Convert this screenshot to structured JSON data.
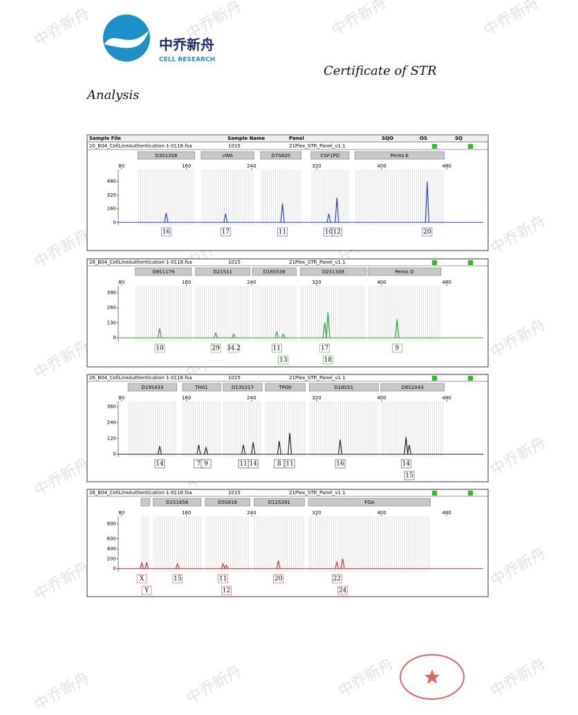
{
  "header": {
    "logo_name": "中乔新舟",
    "logo_subtitle": "CELL RESEARCH",
    "title": "Certificate of STR",
    "subtitle": "Analysis"
  },
  "watermark": "中乔新舟",
  "columns": [
    "Sample File",
    "Sample Name",
    "Panel",
    "SQO",
    "OS",
    "SQ"
  ],
  "panels": [
    {
      "sample_file": "20_B04_CellLineAuthentication-1-0118.fsa",
      "sample_name": "1015",
      "panel": "21Plex_STR_Panel_v1.1",
      "color": "#2b3fc0",
      "xlim": [
        76,
        525
      ],
      "xticks": [
        80,
        160,
        240,
        320,
        400,
        480
      ],
      "ylim": [
        -30,
        620
      ],
      "yticks": [
        0,
        160,
        320,
        480
      ],
      "loci": [
        {
          "name": "D3S1358",
          "range": [
            100,
            170
          ]
        },
        {
          "name": "vWA",
          "range": [
            178,
            243
          ]
        },
        {
          "name": "D7S820",
          "range": [
            251,
            301
          ]
        },
        {
          "name": "CSF1PO",
          "range": [
            313,
            360
          ]
        },
        {
          "name": "Penta E",
          "range": [
            367,
            477
          ]
        }
      ],
      "alleles": [
        {
          "label": "16",
          "size": 135,
          "height": 110
        },
        {
          "label": "17",
          "size": 208,
          "height": 100
        },
        {
          "label": "11",
          "size": 278,
          "height": 220
        },
        {
          "label": "10",
          "size": 335,
          "height": 100
        },
        {
          "label": "12",
          "size": 345,
          "height": 290
        },
        {
          "label": "20",
          "size": 456,
          "height": 480
        }
      ]
    },
    {
      "sample_file": "26_B04_CellLineAuthentication-1-0118.fsa",
      "sample_name": "1015",
      "panel": "21Plex_STR_Panel_v1.1",
      "color": "#2ea12e",
      "xlim": [
        76,
        525
      ],
      "xticks": [
        80,
        160,
        240,
        320,
        400,
        480
      ],
      "ylim": [
        -30,
        450
      ],
      "yticks": [
        0,
        130,
        260,
        390
      ],
      "loci": [
        {
          "name": "D8S1179",
          "range": [
            97,
            166
          ]
        },
        {
          "name": "D21S11",
          "range": [
            171,
            238
          ]
        },
        {
          "name": "D16S539",
          "range": [
            241,
            295
          ]
        },
        {
          "name": "D2S1338",
          "range": [
            300,
            381
          ]
        },
        {
          "name": "Penta D",
          "range": [
            383,
            473
          ]
        }
      ],
      "alleles": [
        {
          "label": "10",
          "size": 127,
          "height": 80
        },
        {
          "label": "29",
          "size": 196,
          "height": 40
        },
        {
          "label": "34.2",
          "size": 218,
          "height": 30
        },
        {
          "label": "11",
          "size": 271,
          "height": 50
        },
        {
          "label": "13",
          "size": 279,
          "height": 30
        },
        {
          "label": "17",
          "size": 330,
          "height": 130
        },
        {
          "label": "18",
          "size": 334,
          "height": 220
        },
        {
          "label": "9",
          "size": 419,
          "height": 160
        }
      ]
    },
    {
      "sample_file": "26_B04_CellLineAuthentication-1-0118.fsa",
      "sample_name": "1015",
      "panel": "21Plex_STR_Panel_v1.1",
      "color": "#222222",
      "xlim": [
        76,
        525
      ],
      "xticks": [
        80,
        160,
        240,
        320,
        400,
        480
      ],
      "ylim": [
        -20,
        400
      ],
      "yticks": [
        0,
        120,
        240,
        360
      ],
      "loci": [
        {
          "name": "D19S433",
          "range": [
            88,
            148
          ]
        },
        {
          "name": "TH01",
          "range": [
            155,
            202
          ]
        },
        {
          "name": "D13S317",
          "range": [
            205,
            253
          ]
        },
        {
          "name": "TPOX",
          "range": [
            257,
            306
          ]
        },
        {
          "name": "D18S51",
          "range": [
            311,
            396
          ]
        },
        {
          "name": "D6S1043",
          "range": [
            399,
            477
          ]
        }
      ],
      "alleles": [
        {
          "label": "14",
          "size": 127,
          "height": 60
        },
        {
          "label": "7",
          "size": 175,
          "height": 70
        },
        {
          "label": "9",
          "size": 184,
          "height": 50
        },
        {
          "label": "11",
          "size": 230,
          "height": 70
        },
        {
          "label": "14",
          "size": 242,
          "height": 90
        },
        {
          "label": "8",
          "size": 274,
          "height": 100
        },
        {
          "label": "11",
          "size": 287,
          "height": 160
        },
        {
          "label": "16",
          "size": 349,
          "height": 110
        },
        {
          "label": "14",
          "size": 430,
          "height": 130
        },
        {
          "label": "15",
          "size": 434,
          "height": 70
        }
      ]
    },
    {
      "sample_file": "26_B04_CellLineAuthentication-1-0118.fsa",
      "sample_name": "1015",
      "panel": "21Plex_STR_Panel_v1.1",
      "color": "#d03030",
      "xlim": [
        76,
        525
      ],
      "xticks": [
        80,
        160,
        240,
        320,
        400,
        480
      ],
      "ylim": [
        -60,
        1050
      ],
      "yticks": [
        0,
        200,
        400,
        600,
        900
      ],
      "loci": [
        {
          "name": null,
          "range": [
            104,
            115
          ]
        },
        {
          "name": "D1S1656",
          "range": [
            119,
            178
          ]
        },
        {
          "name": "D5S818",
          "range": [
            183,
            238
          ]
        },
        {
          "name": "D12S391",
          "range": [
            243,
            305
          ]
        },
        {
          "name": "FGA",
          "range": [
            310,
            460
          ]
        }
      ],
      "alleles": [
        {
          "label": "X",
          "size": 105,
          "height": 120
        },
        {
          "label": "Y",
          "size": 111,
          "height": 120
        },
        {
          "label": "15",
          "size": 149,
          "height": 100
        },
        {
          "label": "11",
          "size": 205,
          "height": 100
        },
        {
          "label": "12",
          "size": 209,
          "height": 70
        },
        {
          "label": "20",
          "size": 273,
          "height": 160
        },
        {
          "label": "22",
          "size": 345,
          "height": 130
        },
        {
          "label": "24",
          "size": 352,
          "height": 200
        }
      ]
    }
  ]
}
